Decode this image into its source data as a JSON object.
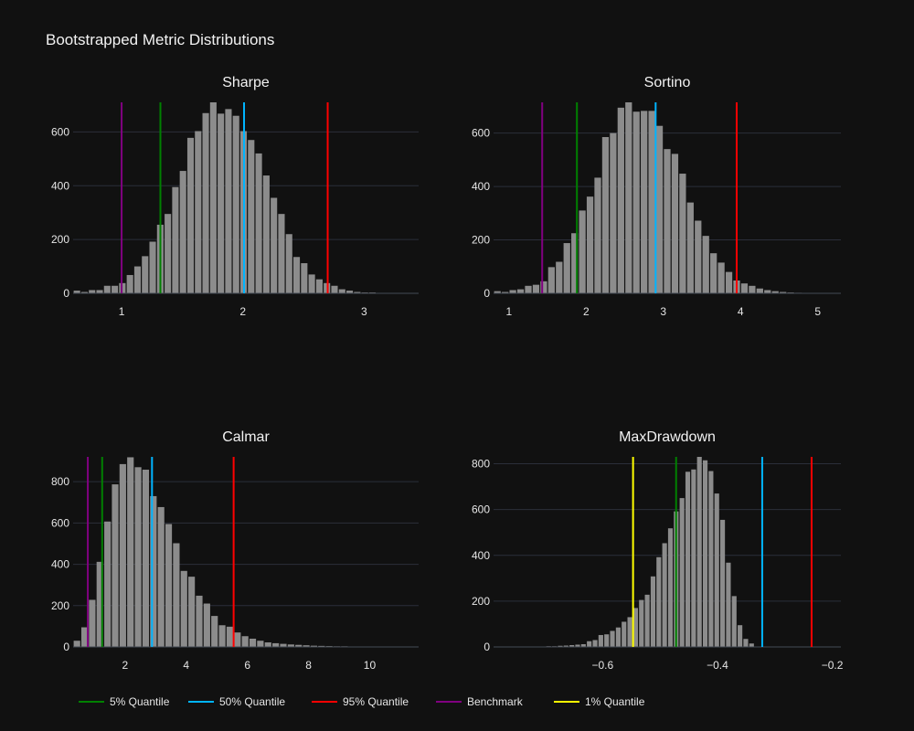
{
  "title": "Bootstrapped Metric Distributions",
  "colors": {
    "background": "#111111",
    "bar": "#8c8c8c",
    "grid": "#2b2f3a",
    "text": "#e6e6e6",
    "q05": "#008000",
    "q50": "#00b4ff",
    "q95": "#ff0000",
    "benchmark": "#800080",
    "q01": "#ffff00"
  },
  "legend": {
    "placement": "bottom-left",
    "items": [
      {
        "label": "5% Quantile",
        "color": "#008000"
      },
      {
        "label": "50% Quantile",
        "color": "#00b4ff"
      },
      {
        "label": "95% Quantile",
        "color": "#ff0000"
      },
      {
        "label": "Benchmark",
        "color": "#800080"
      },
      {
        "label": "1% Quantile",
        "color": "#ffff00"
      }
    ]
  },
  "chart_data": [
    {
      "type": "bar",
      "title": "Sharpe",
      "xlim": [
        0.6,
        3.45
      ],
      "ylim": [
        0,
        710
      ],
      "xticks": [
        1,
        2,
        3
      ],
      "yticks": [
        0,
        200,
        400,
        600
      ],
      "grid": true,
      "bin_start": 0.6,
      "bin_width": 0.0625,
      "values": [
        10,
        5,
        12,
        12,
        28,
        28,
        38,
        68,
        100,
        138,
        192,
        255,
        295,
        395,
        455,
        578,
        603,
        670,
        710,
        668,
        685,
        660,
        603,
        570,
        520,
        438,
        355,
        295,
        220,
        135,
        112,
        70,
        52,
        38,
        28,
        15,
        10,
        5,
        3,
        3
      ],
      "vlines": [
        {
          "name": "Benchmark",
          "x": 1.0
        },
        {
          "name": "5% Quantile",
          "x": 1.32
        },
        {
          "name": "50% Quantile",
          "x": 2.01
        },
        {
          "name": "95% Quantile",
          "x": 2.7
        }
      ]
    },
    {
      "type": "bar",
      "title": "Sortino",
      "xlim": [
        0.8,
        5.3
      ],
      "ylim": [
        0,
        715
      ],
      "xticks": [
        1,
        2,
        3,
        4,
        5
      ],
      "yticks": [
        0,
        200,
        400,
        600
      ],
      "grid": true,
      "bin_start": 0.8,
      "bin_width": 0.1,
      "values": [
        8,
        5,
        12,
        15,
        28,
        32,
        45,
        98,
        118,
        188,
        225,
        310,
        362,
        433,
        585,
        600,
        695,
        715,
        680,
        683,
        683,
        627,
        540,
        522,
        448,
        340,
        272,
        215,
        150,
        115,
        80,
        48,
        37,
        28,
        18,
        12,
        8,
        5,
        3,
        2,
        1,
        1,
        1,
        1,
        1
      ],
      "vlines": [
        {
          "name": "Benchmark",
          "x": 1.43
        },
        {
          "name": "5% Quantile",
          "x": 1.88
        },
        {
          "name": "50% Quantile",
          "x": 2.9
        },
        {
          "name": "95% Quantile",
          "x": 3.95
        }
      ]
    },
    {
      "type": "bar",
      "title": "Calmar",
      "xlim": [
        0.3,
        11.6
      ],
      "ylim": [
        0,
        920
      ],
      "xticks": [
        2,
        4,
        6,
        8,
        10
      ],
      "yticks": [
        0,
        200,
        400,
        600,
        800
      ],
      "grid": true,
      "bin_start": 0.3,
      "bin_width": 0.25,
      "values": [
        30,
        95,
        228,
        412,
        607,
        787,
        885,
        918,
        870,
        858,
        730,
        677,
        595,
        502,
        368,
        340,
        248,
        210,
        150,
        105,
        98,
        70,
        52,
        40,
        30,
        22,
        18,
        15,
        12,
        10,
        8,
        6,
        5,
        4,
        3,
        3,
        2,
        2,
        2,
        1,
        1,
        1,
        1,
        1,
        1
      ],
      "vlines": [
        {
          "name": "Benchmark",
          "x": 0.78
        },
        {
          "name": "5% Quantile",
          "x": 1.25
        },
        {
          "name": "50% Quantile",
          "x": 2.88
        },
        {
          "name": "95% Quantile",
          "x": 5.55
        }
      ]
    },
    {
      "type": "bar",
      "title": "MaxDrawdown",
      "xlim": [
        -0.79,
        -0.185
      ],
      "ylim": [
        0,
        830
      ],
      "xticks": [
        -0.6,
        -0.4,
        -0.2
      ],
      "xtick_labels": [
        "−0.6",
        "−0.4",
        "−0.2"
      ],
      "yticks": [
        0,
        200,
        400,
        600,
        800
      ],
      "grid": true,
      "bin_start": -0.79,
      "bin_width": 0.0101,
      "values": [
        1,
        1,
        1,
        1,
        1,
        1,
        2,
        2,
        2,
        3,
        3,
        5,
        6,
        8,
        10,
        12,
        25,
        30,
        52,
        55,
        70,
        85,
        110,
        130,
        170,
        205,
        228,
        308,
        392,
        453,
        518,
        592,
        650,
        765,
        775,
        830,
        815,
        768,
        670,
        555,
        368,
        222,
        95,
        35,
        15
      ],
      "vlines": [
        {
          "name": "1% Quantile",
          "x": -0.547
        },
        {
          "name": "5% Quantile",
          "x": -0.472
        },
        {
          "name": "50% Quantile",
          "x": -0.322
        },
        {
          "name": "95% Quantile",
          "x": -0.236
        }
      ]
    }
  ]
}
